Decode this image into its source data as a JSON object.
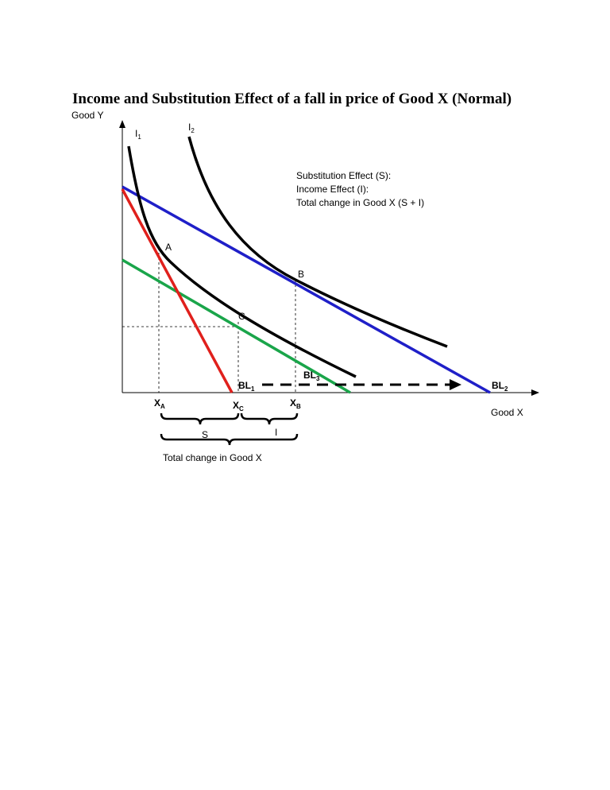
{
  "title": "Income and Substitution Effect of a fall in price of Good X (Normal)",
  "axes": {
    "y_label": "Good Y",
    "x_label": "Good X"
  },
  "curves": [
    {
      "text": "I",
      "sub": "1"
    },
    {
      "text": "I",
      "sub": "2"
    }
  ],
  "legend": [
    "Substitution Effect (S):",
    "Income Effect (I):",
    "Total change in Good X (S + I)"
  ],
  "points": [
    "A",
    "B",
    "C"
  ],
  "budget_lines": [
    {
      "text": "BL",
      "sub": "1"
    },
    {
      "text": "BL",
      "sub": "3"
    },
    {
      "text": "BL",
      "sub": "2"
    }
  ],
  "x_marks": [
    {
      "text": "X",
      "sub": "A"
    },
    {
      "text": "X",
      "sub": "C"
    },
    {
      "text": "X",
      "sub": "B"
    }
  ],
  "braces": [
    "S",
    "I",
    "Total change in Good X"
  ]
}
